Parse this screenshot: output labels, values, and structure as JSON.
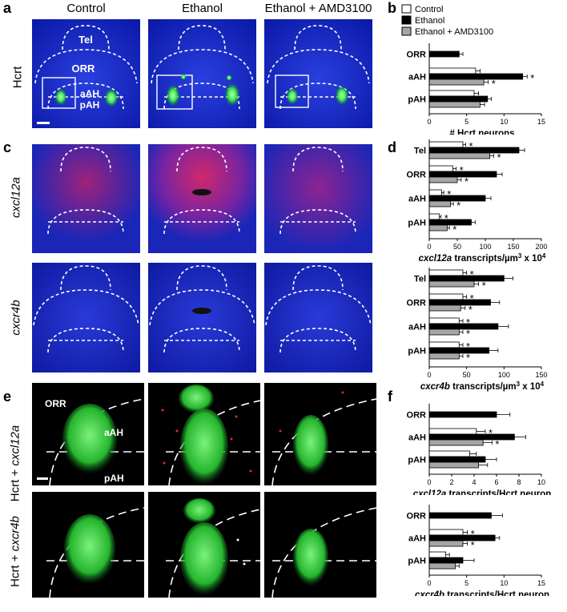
{
  "panel_letters": {
    "a": "a",
    "b": "b",
    "c": "c",
    "d": "d",
    "e": "e",
    "f": "f"
  },
  "columns": [
    "Control",
    "Ethanol",
    "Ethanol + AMD3100"
  ],
  "row_labels": {
    "a": "Hcrt",
    "c1": "cxcl12a",
    "c2": "cxcr4b",
    "e1_prefix": "Hcrt + ",
    "e1_gene": "cxcl12a",
    "e2_prefix": "Hcrt + ",
    "e2_gene": "cxcr4b"
  },
  "region_labels": {
    "tel": "Tel",
    "orr": "ORR",
    "aah": "aAH",
    "pah": "pAH"
  },
  "colors": {
    "control": "#ffffff",
    "ethanol": "#000000",
    "amd": "#a6a6a6",
    "nuclear_blue": "#1a2fd6",
    "hcrt_green": "#39e84a",
    "transcript_red": "#e0214a",
    "transcript_white": "#f2f2f2"
  },
  "legend": [
    "Control",
    "Ethanol",
    "Ethanol + AMD3100"
  ],
  "significance_marker": "*",
  "chart_data": [
    {
      "panel": "b",
      "type": "bar",
      "orientation": "horizontal",
      "categories": [
        "ORR",
        "aAH",
        "pAH"
      ],
      "series": [
        {
          "name": "Control",
          "values": [
            0,
            6.2,
            6.0
          ],
          "errors": [
            0,
            0.6,
            0.6
          ]
        },
        {
          "name": "Ethanol",
          "values": [
            4.0,
            12.5,
            7.8
          ],
          "errors": [
            0.5,
            0.6,
            0.5
          ]
        },
        {
          "name": "Ethanol + AMD3100",
          "values": [
            0,
            7.3,
            6.8
          ],
          "errors": [
            0,
            0.6,
            0.6
          ]
        }
      ],
      "stars": [
        [],
        [
          "Ethanol",
          "Ethanol + AMD3100"
        ],
        []
      ],
      "xlim": [
        0,
        15
      ],
      "xticks": [
        0,
        5,
        10,
        15
      ],
      "xlabel": "# Hcrt neurons"
    },
    {
      "panel": "d1",
      "type": "bar",
      "orientation": "horizontal",
      "categories": [
        "Tel",
        "ORR",
        "aAH",
        "pAH"
      ],
      "series": [
        {
          "name": "Control",
          "values": [
            60,
            42,
            22,
            18
          ],
          "errors": [
            5,
            6,
            4,
            3
          ]
        },
        {
          "name": "Ethanol",
          "values": [
            160,
            120,
            100,
            75
          ],
          "errors": [
            10,
            10,
            10,
            7
          ]
        },
        {
          "name": "Ethanol + AMD3100",
          "values": [
            108,
            50,
            38,
            32
          ],
          "errors": [
            7,
            7,
            5,
            4
          ]
        }
      ],
      "stars": [
        [
          "Control",
          "Ethanol + AMD3100"
        ],
        [
          "Control",
          "Ethanol + AMD3100"
        ],
        [
          "Control",
          "Ethanol + AMD3100"
        ],
        [
          "Control",
          "Ethanol + AMD3100"
        ]
      ],
      "xlim": [
        0,
        200
      ],
      "xticks": [
        0,
        50,
        100,
        150,
        200
      ],
      "xlabel_gene": "cxcl12a",
      "xlabel_rest": " transcripts/µm",
      "xlabel_sup": "3",
      "xlabel_tail": " x 10",
      "xlabel_sup2": "4"
    },
    {
      "panel": "d2",
      "type": "bar",
      "orientation": "horizontal",
      "categories": [
        "Tel",
        "ORR",
        "aAH",
        "pAH"
      ],
      "series": [
        {
          "name": "Control",
          "values": [
            45,
            45,
            40,
            40
          ],
          "errors": [
            5,
            5,
            5,
            5
          ]
        },
        {
          "name": "Ethanol",
          "values": [
            100,
            82,
            92,
            80
          ],
          "errors": [
            12,
            12,
            14,
            12
          ]
        },
        {
          "name": "Ethanol + AMD3100",
          "values": [
            60,
            42,
            40,
            40
          ],
          "errors": [
            6,
            6,
            5,
            5
          ]
        }
      ],
      "stars": [
        [
          "Control",
          "Ethanol + AMD3100"
        ],
        [
          "Control",
          "Ethanol + AMD3100"
        ],
        [
          "Control",
          "Ethanol + AMD3100"
        ],
        [
          "Control",
          "Ethanol + AMD3100"
        ]
      ],
      "xlim": [
        0,
        150
      ],
      "xticks": [
        0,
        50,
        100,
        150
      ],
      "xlabel_gene": "cxcr4b",
      "xlabel_rest": " transcripts/µm",
      "xlabel_sup": "3",
      "xlabel_tail": " x 10",
      "xlabel_sup2": "4"
    },
    {
      "panel": "f1",
      "type": "bar",
      "orientation": "horizontal",
      "categories": [
        "ORR",
        "aAH",
        "pAH"
      ],
      "series": [
        {
          "name": "Control",
          "values": [
            0,
            4.2,
            3.6
          ],
          "errors": [
            0,
            0.8,
            0.6
          ]
        },
        {
          "name": "Ethanol",
          "values": [
            6.0,
            7.6,
            5.0
          ],
          "errors": [
            1.2,
            1.0,
            1.0
          ]
        },
        {
          "name": "Ethanol + AMD3100",
          "values": [
            0,
            4.8,
            4.4
          ],
          "errors": [
            0,
            0.8,
            0.8
          ]
        }
      ],
      "stars": [
        [],
        [
          "Control",
          "Ethanol + AMD3100"
        ],
        []
      ],
      "xlim": [
        0,
        10
      ],
      "xticks": [
        0,
        2,
        4,
        6,
        8,
        10
      ],
      "xlabel_gene": "cxcl12a",
      "xlabel_rest": " transcripts/Hcrt neuron"
    },
    {
      "panel": "f2",
      "type": "bar",
      "orientation": "horizontal",
      "categories": [
        "ORR",
        "aAH",
        "pAH"
      ],
      "series": [
        {
          "name": "Control",
          "values": [
            0,
            4.5,
            2.2
          ],
          "errors": [
            0,
            0.6,
            0.5
          ]
        },
        {
          "name": "Ethanol",
          "values": [
            8.3,
            8.8,
            4.5
          ],
          "errors": [
            1.5,
            0.6,
            1.5
          ]
        },
        {
          "name": "Ethanol + AMD3100",
          "values": [
            0,
            4.5,
            3.5
          ],
          "errors": [
            0,
            0.6,
            0.5
          ]
        }
      ],
      "stars": [
        [],
        [
          "Control",
          "Ethanol + AMD3100"
        ],
        []
      ],
      "xlim": [
        0,
        15
      ],
      "xticks": [
        0,
        5,
        10,
        15
      ],
      "xlabel_gene": "cxcr4b",
      "xlabel_rest": " transcripts/Hcrt neuron"
    }
  ]
}
